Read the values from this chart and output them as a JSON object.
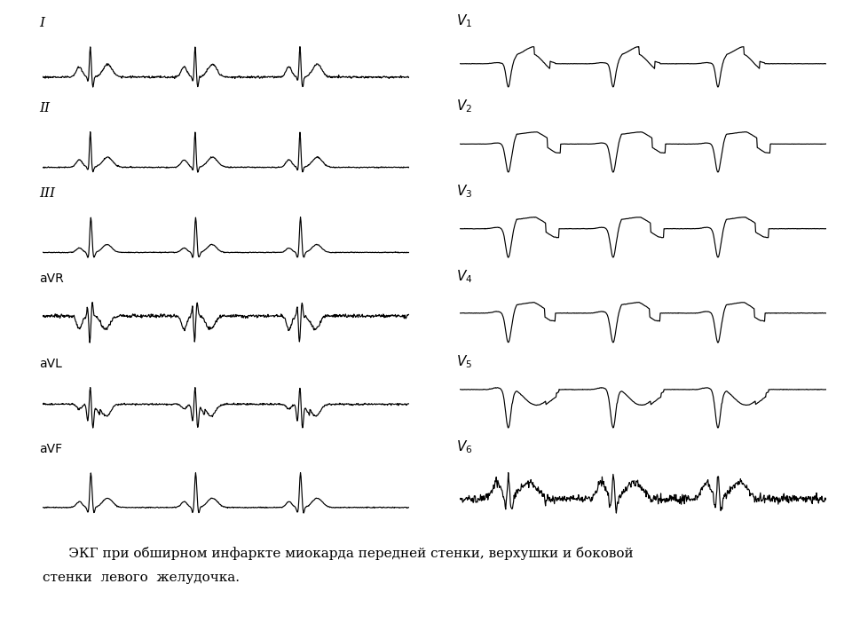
{
  "title_line1": "      ЭКГ при обширном инфаркте миокарда передней стенки, верхушки и боковой",
  "title_line2": "стенки  левого  желудочка.",
  "bg_color": "#ffffff",
  "line_color": "#000000",
  "leads_left": [
    "I",
    "II",
    "III",
    "aVR",
    "aVL",
    "aVF"
  ],
  "leads_right": [
    "V1",
    "V2",
    "V3",
    "V4",
    "V5",
    "V6"
  ]
}
